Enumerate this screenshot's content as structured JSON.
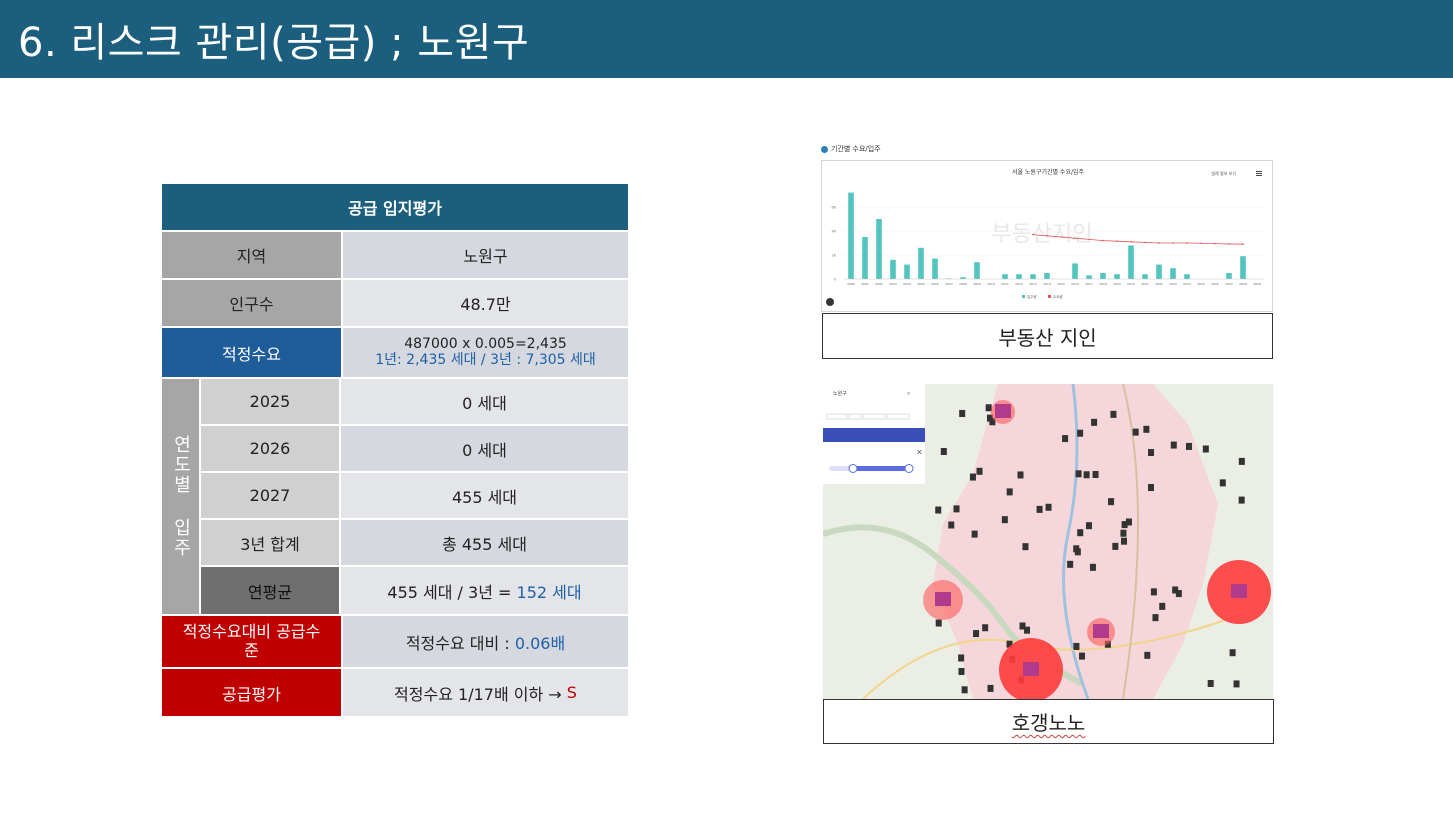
{
  "header": {
    "title": "6. 리스크 관리(공급) ; 노원구"
  },
  "table": {
    "caption": "공급 입지평가",
    "region_label": "지역",
    "region_value": "노원구",
    "population_label": "인구수",
    "population_value": "48.7만",
    "demand_label": "적정수요",
    "demand_line1": "487000 x 0.005=2,435",
    "demand_line2": "1년: 2,435 세대 / 3년 : 7,305 세대",
    "yearly_group_label": "연도별 입주",
    "years": [
      {
        "label": "2025",
        "value": "0 세대"
      },
      {
        "label": "2026",
        "value": "0 세대"
      },
      {
        "label": "2027",
        "value": "455 세대"
      },
      {
        "label": "3년 합계",
        "value": "총 455 세대"
      }
    ],
    "avg_label": "연평균",
    "avg_value_prefix": "455 세대 / 3년 = ",
    "avg_value_highlight": "152 세대",
    "ratio_label": "적정수요대비 공급수준",
    "ratio_value_prefix": "적정수요 대비 : ",
    "ratio_value_highlight": "0.06배",
    "eval_label": "공급평가",
    "eval_value_prefix": "적정수요 1/17배 이하 → ",
    "eval_value_highlight": "S"
  },
  "chart_screenshot": {
    "section_title": "기간별 수요/입주",
    "chart_title": "서울 노원구기간별 수요/입주",
    "menu_label": "범례 펼쳐 보기",
    "caption": "부동산 지인",
    "watermark": "부동산지인",
    "colors": {
      "bar": "#54c4be",
      "line": "#e05555"
    }
  },
  "chart_data": {
    "type": "bar",
    "title": "서울 노원구기간별 수요/입주",
    "categories": [
      "2000",
      "2001",
      "2002",
      "2003",
      "2004",
      "2005",
      "2006",
      "2007",
      "2008",
      "2009",
      "2010",
      "2011",
      "2012",
      "2013",
      "2014",
      "2015",
      "2016",
      "2017",
      "2018",
      "2019",
      "2020",
      "2021",
      "2022",
      "2023",
      "2024",
      "2025",
      "2026",
      "2027",
      "2028",
      "2029"
    ],
    "yticks": [
      "0",
      "2K",
      "4K",
      "6K"
    ],
    "series": [
      {
        "name": "입주량",
        "values": [
          7.2,
          3.5,
          5.0,
          1.6,
          1.2,
          2.6,
          1.7,
          0.05,
          0.15,
          1.4,
          0,
          0.4,
          0.4,
          0.4,
          0.5,
          0,
          1.3,
          0.3,
          0.5,
          0.4,
          2.8,
          0.4,
          1.2,
          0.9,
          0.4,
          0,
          0,
          0.5,
          1.9,
          0
        ]
      },
      {
        "name": "수요량",
        "values": [
          null,
          null,
          null,
          null,
          null,
          null,
          null,
          null,
          null,
          null,
          null,
          null,
          null,
          3.7,
          3.6,
          3.5,
          3.4,
          3.3,
          3.2,
          3.15,
          3.1,
          3.05,
          3.0,
          3.0,
          3.0,
          2.98,
          2.95,
          2.92,
          2.9,
          null
        ]
      }
    ],
    "ylim": [
      0,
      7.5
    ],
    "legend": "bottom-center"
  },
  "map_screenshot": {
    "app_label": "노원구",
    "caption": "호갱노노",
    "colors": {
      "hot": "#ff3b3b",
      "area": "#f6c9cf"
    }
  }
}
